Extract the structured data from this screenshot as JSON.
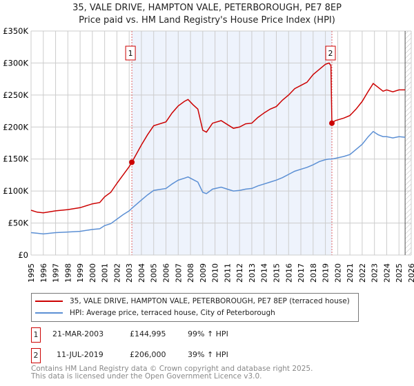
{
  "chart_data": {
    "type": "line",
    "title": "35, VALE DRIVE, HAMPTON VALE, PETERBOROUGH, PE7 8EP",
    "subtitle": "Price paid vs. HM Land Registry's House Price Index (HPI)",
    "xlim": [
      1995,
      2026
    ],
    "ylim": [
      0,
      350000
    ],
    "y_ticks": [
      {
        "v": 0,
        "label": "£0"
      },
      {
        "v": 50000,
        "label": "£50K"
      },
      {
        "v": 100000,
        "label": "£100K"
      },
      {
        "v": 150000,
        "label": "£150K"
      },
      {
        "v": 200000,
        "label": "£200K"
      },
      {
        "v": 250000,
        "label": "£250K"
      },
      {
        "v": 300000,
        "label": "£300K"
      },
      {
        "v": 350000,
        "label": "£350K"
      }
    ],
    "x_ticks": [
      "1995",
      "1996",
      "1997",
      "1998",
      "1999",
      "2000",
      "2001",
      "2002",
      "2003",
      "2004",
      "2005",
      "2006",
      "2007",
      "2008",
      "2009",
      "2010",
      "2011",
      "2012",
      "2013",
      "2014",
      "2015",
      "2016",
      "2017",
      "2018",
      "2019",
      "2020",
      "2021",
      "2022",
      "2023",
      "2024",
      "2025",
      "2026"
    ],
    "grid": true,
    "shaded_range": [
      2003.22,
      2019.53
    ],
    "hatched_from": 2025.5,
    "series": [
      {
        "name": "35, VALE DRIVE, HAMPTON VALE, PETERBOROUGH, PE7 8EP (terraced house)",
        "color": "#cc0000",
        "x": [
          1995,
          1995.5,
          1996,
          1997,
          1998,
          1999,
          2000,
          2000.6,
          2001,
          2001.5,
          2002,
          2002.5,
          2003,
          2003.22,
          2004,
          2004.5,
          2005,
          2006,
          2006.5,
          2007,
          2007.5,
          2007.8,
          2008.2,
          2008.6,
          2009,
          2009.3,
          2009.8,
          2010.5,
          2011,
          2011.5,
          2012,
          2012.5,
          2013,
          2013.5,
          2014,
          2014.5,
          2015,
          2015.5,
          2016,
          2016.5,
          2017,
          2017.5,
          2018,
          2018.5,
          2019,
          2019.3,
          2019.45,
          2019.53,
          2019.8,
          2020.5,
          2021,
          2021.5,
          2022,
          2022.5,
          2022.9,
          2023.3,
          2023.7,
          2024,
          2024.5,
          2025,
          2025.5
        ],
        "y": [
          70000,
          67000,
          66000,
          69000,
          71000,
          74000,
          80000,
          82000,
          91000,
          98000,
          112000,
          125000,
          138000,
          144995,
          172000,
          188000,
          202000,
          208000,
          222000,
          233000,
          240000,
          243000,
          235000,
          228000,
          195000,
          192000,
          206000,
          210000,
          204000,
          198000,
          200000,
          205000,
          206000,
          215000,
          222000,
          228000,
          232000,
          242000,
          250000,
          260000,
          265000,
          270000,
          282000,
          290000,
          298000,
          300000,
          296000,
          206000,
          210000,
          214000,
          218000,
          228000,
          240000,
          256000,
          268000,
          262000,
          256000,
          258000,
          255000,
          258000,
          258000
        ]
      },
      {
        "name": "HPI: Average price, terraced house, City of Peterborough",
        "color": "#5b8fd4",
        "x": [
          1995,
          1995.5,
          1996,
          1997,
          1998,
          1999,
          2000,
          2000.6,
          2001,
          2001.5,
          2002,
          2002.5,
          2003,
          2003.22,
          2004,
          2004.5,
          2005,
          2006,
          2006.5,
          2007,
          2007.5,
          2007.8,
          2008.2,
          2008.6,
          2009,
          2009.3,
          2009.8,
          2010.5,
          2011,
          2011.5,
          2012,
          2012.5,
          2013,
          2013.5,
          2014,
          2014.5,
          2015,
          2015.5,
          2016,
          2016.5,
          2017,
          2017.5,
          2018,
          2018.5,
          2019,
          2019.3,
          2019.45,
          2019.53,
          2019.8,
          2020.5,
          2021,
          2021.5,
          2022,
          2022.5,
          2022.9,
          2023.3,
          2023.7,
          2024,
          2024.5,
          2025,
          2025.5
        ],
        "y": [
          35000,
          34000,
          33000,
          35000,
          36000,
          37000,
          40000,
          41000,
          46000,
          49000,
          56000,
          63000,
          69000,
          73000,
          86000,
          94000,
          101000,
          104000,
          111000,
          117000,
          120000,
          122000,
          118000,
          114000,
          98000,
          96000,
          103000,
          106000,
          103000,
          100000,
          101000,
          103000,
          104000,
          108000,
          111000,
          114000,
          117000,
          121000,
          126000,
          131000,
          134000,
          137000,
          141000,
          146000,
          149000,
          150000,
          150000,
          150000,
          151000,
          154000,
          157000,
          165000,
          173000,
          185000,
          193000,
          188000,
          185000,
          185000,
          183000,
          185000,
          184000
        ]
      }
    ],
    "annotations": [
      {
        "label": "1",
        "x": 2003.22,
        "y": 144995
      },
      {
        "label": "2",
        "x": 2019.53,
        "y": 206000
      }
    ]
  },
  "transactions": [
    {
      "num": "1",
      "date": "21-MAR-2003",
      "price": "£144,995",
      "hpi": "99% ↑ HPI"
    },
    {
      "num": "2",
      "date": "11-JUL-2019",
      "price": "£206,000",
      "hpi": "39% ↑ HPI"
    }
  ],
  "footer": [
    "Contains HM Land Registry data © Crown copyright and database right 2025.",
    "This data is licensed under the Open Government Licence v3.0."
  ]
}
